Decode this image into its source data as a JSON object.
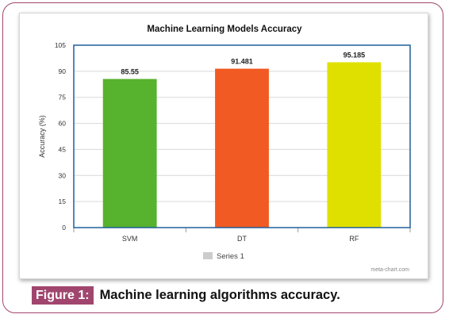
{
  "chart_data": {
    "type": "bar",
    "title": "Machine Learning Models Accuracy",
    "ylabel": "Accuracy (%)",
    "xlabel": "",
    "categories": [
      "SVM",
      "DT",
      "RF"
    ],
    "series": [
      {
        "name": "Series 1",
        "values": [
          85.55,
          91.481,
          95.185
        ]
      }
    ],
    "data_labels": [
      "85.55",
      "91.481",
      "95.185"
    ],
    "bar_colors": [
      "#57b22d",
      "#f15a22",
      "#e0e000"
    ],
    "ylim": [
      0,
      105
    ],
    "yticks": [
      0,
      15,
      30,
      45,
      60,
      75,
      90,
      105
    ],
    "grid": true,
    "legend": {
      "position": "bottom",
      "color": "#cccccc"
    },
    "watermark": "meta-chart.com"
  },
  "caption": {
    "label": "Figure 1:",
    "text": "Machine learning algorithms accuracy."
  }
}
